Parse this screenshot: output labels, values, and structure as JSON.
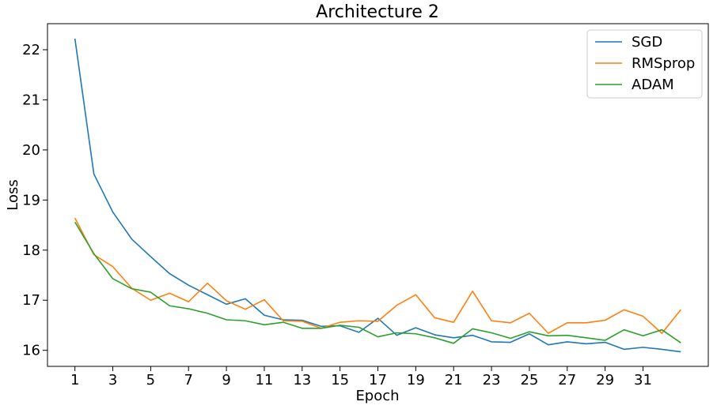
{
  "chart_data": {
    "type": "line",
    "title": "Architecture 2",
    "xlabel": "Epoch",
    "ylabel": "Loss",
    "x": [
      1,
      2,
      3,
      4,
      5,
      6,
      7,
      8,
      9,
      10,
      11,
      12,
      13,
      14,
      15,
      16,
      17,
      18,
      19,
      20,
      21,
      22,
      23,
      24,
      25,
      26,
      27,
      28,
      29,
      30,
      31,
      32,
      33
    ],
    "xticks": [
      "1",
      "3",
      "5",
      "7",
      "9",
      "11",
      "13",
      "15",
      "17",
      "19",
      "21",
      "23",
      "25",
      "27",
      "29",
      "31"
    ],
    "yticks": [
      "16",
      "17",
      "18",
      "19",
      "20",
      "21",
      "22"
    ],
    "xlim": [
      -0.45,
      34.45
    ],
    "ylim": [
      15.68,
      22.52
    ],
    "grid": false,
    "legend_position": "top-right",
    "series": [
      {
        "name": "SGD",
        "color": "#1f77b4",
        "values": [
          22.22,
          19.52,
          18.76,
          18.22,
          17.87,
          17.53,
          17.3,
          17.11,
          16.92,
          17.03,
          16.7,
          16.61,
          16.6,
          16.48,
          16.49,
          16.36,
          16.64,
          16.3,
          16.45,
          16.31,
          16.25,
          16.3,
          16.17,
          16.16,
          16.33,
          16.11,
          16.17,
          16.13,
          16.16,
          16.02,
          16.06,
          16.02,
          15.97
        ]
      },
      {
        "name": "RMSprop",
        "color": "#ff7f0e",
        "values": [
          18.64,
          17.91,
          17.67,
          17.24,
          17.0,
          17.14,
          16.97,
          17.34,
          16.99,
          16.82,
          17.01,
          16.59,
          16.58,
          16.44,
          16.56,
          16.59,
          16.58,
          16.9,
          17.11,
          16.65,
          16.56,
          17.18,
          16.59,
          16.55,
          16.74,
          16.34,
          16.55,
          16.55,
          16.6,
          16.81,
          16.68,
          16.34,
          16.81
        ]
      },
      {
        "name": "ADAM",
        "color": "#2ca02c",
        "values": [
          18.56,
          17.93,
          17.43,
          17.23,
          17.16,
          16.89,
          16.83,
          16.74,
          16.61,
          16.59,
          16.51,
          16.56,
          16.44,
          16.44,
          16.5,
          16.46,
          16.27,
          16.35,
          16.33,
          16.25,
          16.14,
          16.43,
          16.35,
          16.24,
          16.37,
          16.29,
          16.3,
          16.25,
          16.2,
          16.41,
          16.29,
          16.41,
          16.15
        ]
      }
    ]
  }
}
